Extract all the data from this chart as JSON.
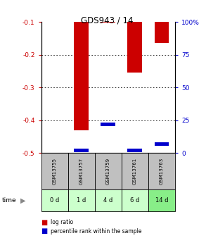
{
  "title": "GDS943 / 14",
  "samples": [
    "GSM13755",
    "GSM13757",
    "GSM13759",
    "GSM13761",
    "GSM13763"
  ],
  "time_labels": [
    "0 d",
    "1 d",
    "4 d",
    "6 d",
    "14 d"
  ],
  "log_ratios": [
    0.0,
    -0.43,
    -0.101,
    -0.255,
    -0.165
  ],
  "percentile_ranks_pct": [
    0.0,
    2.0,
    22.0,
    2.0,
    7.0
  ],
  "ylim_left": [
    -0.5,
    -0.1
  ],
  "yticks_left": [
    -0.5,
    -0.4,
    -0.3,
    -0.2,
    -0.1
  ],
  "yticks_right": [
    0,
    25,
    50,
    75,
    100
  ],
  "bar_width": 0.55,
  "log_ratio_color": "#cc0000",
  "percentile_color": "#0000cc",
  "sample_bg_color": "#c0c0c0",
  "time_bg_colors": [
    "#ccffcc",
    "#ccffcc",
    "#ccffcc",
    "#ccffcc",
    "#88ee88"
  ],
  "left_tick_color": "#cc0000",
  "right_tick_color": "#0000cc",
  "legend_items": [
    "log ratio",
    "percentile rank within the sample"
  ],
  "fig_width": 2.93,
  "fig_height": 3.45,
  "dpi": 100
}
